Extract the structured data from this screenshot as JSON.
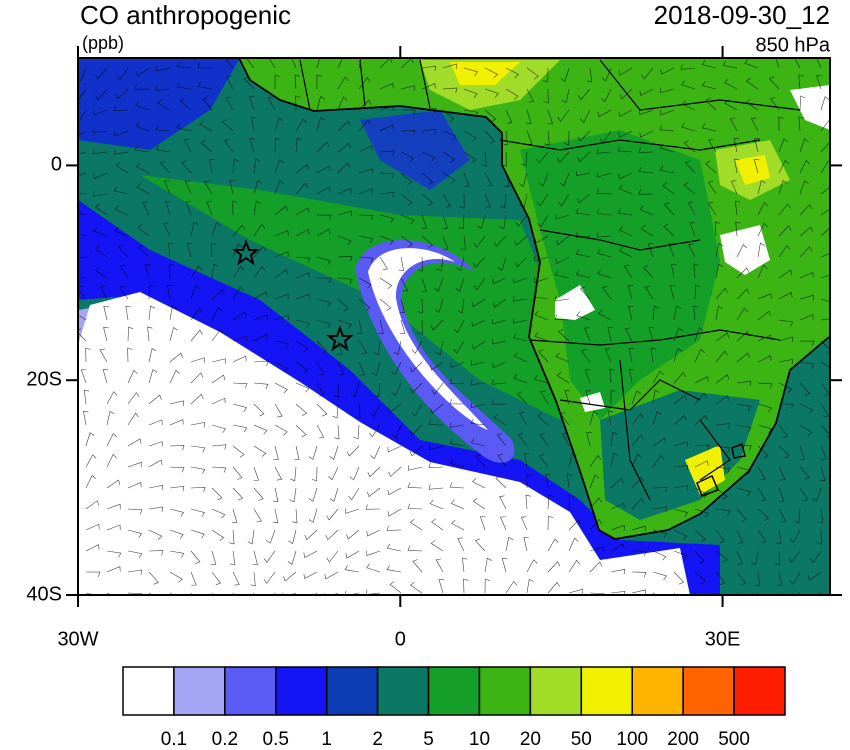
{
  "header": {
    "title": "CO anthropogenic",
    "units": "(ppb)",
    "date": "2018-09-30_12",
    "level": "850 hPa"
  },
  "map": {
    "lonlim": [
      -30,
      40
    ],
    "latlim": [
      -40,
      10
    ],
    "lonticks": [
      {
        "value": -30,
        "label": "30W"
      },
      0,
      {
        "value": 30,
        "label": "30E"
      }
    ],
    "latticks": [
      0,
      {
        "value": -20,
        "label": "20S"
      },
      {
        "value": -40,
        "label": "40S"
      }
    ]
  },
  "colorbar": {
    "colors": [
      "#ffffff",
      "#a5a5f5",
      "#5a5af5",
      "#1414f5",
      "#0c3cb4",
      "#0a7864",
      "#14a028",
      "#3cb414",
      "#a0dc28",
      "#f0f000",
      "#ffb400",
      "#ff6400",
      "#ff1e00"
    ],
    "labels": [
      "0.1",
      "0.2",
      "0.5",
      "1",
      "2",
      "5",
      "10",
      "20",
      "50",
      "100",
      "200",
      "500"
    ]
  }
}
